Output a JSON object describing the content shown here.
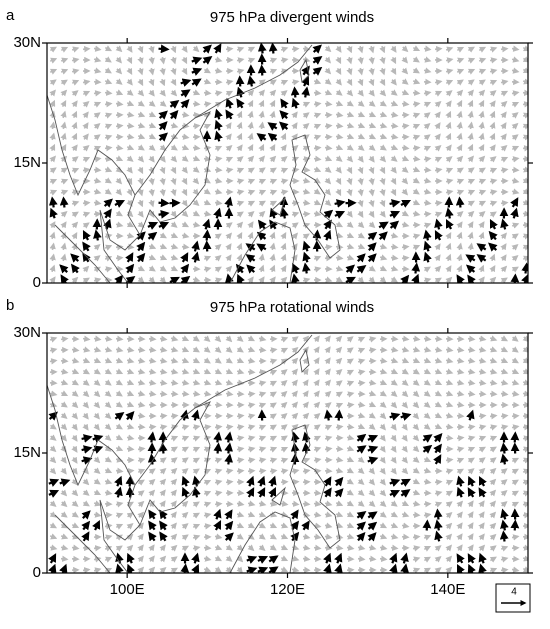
{
  "panels": [
    {
      "label": "a",
      "title": "975 hPa divergent winds",
      "yticks": [
        {
          "value": 0,
          "label": "0"
        },
        {
          "value": 15,
          "label": "15N"
        },
        {
          "value": 30,
          "label": "30N"
        }
      ]
    },
    {
      "label": "b",
      "title": "975 hPa rotational winds",
      "yticks": [
        {
          "value": 0,
          "label": "0"
        },
        {
          "value": 15,
          "label": "15N"
        },
        {
          "value": 30,
          "label": "30N"
        }
      ]
    }
  ],
  "xlim": [
    90,
    150
  ],
  "ylim": [
    0,
    30
  ],
  "xticks": [
    {
      "value": 100,
      "label": "100E"
    },
    {
      "value": 120,
      "label": "120E"
    },
    {
      "value": 140,
      "label": "140E"
    }
  ],
  "reference_vector": {
    "label": "4"
  }
}
